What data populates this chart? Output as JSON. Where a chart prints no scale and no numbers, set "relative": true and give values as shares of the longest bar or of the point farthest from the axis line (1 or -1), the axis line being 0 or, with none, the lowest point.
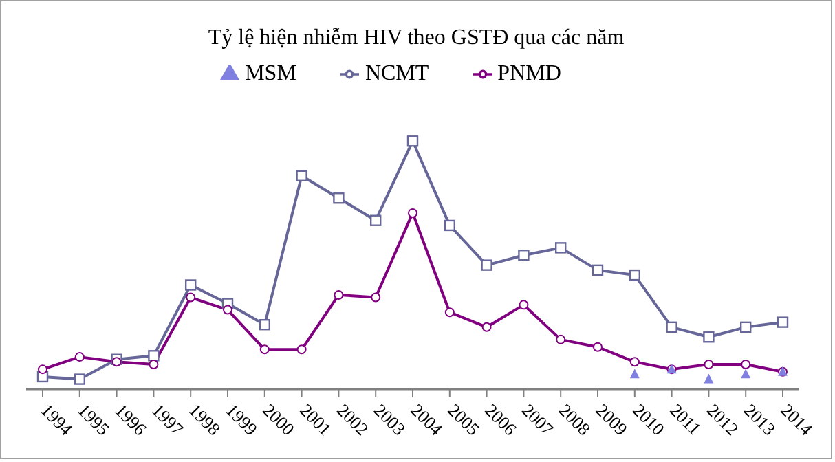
{
  "chart_data": {
    "type": "line",
    "title": "Tỷ lệ hiện nhiễm HIV theo GSTĐ qua các năm",
    "relative": true,
    "legend": "top",
    "grid": false,
    "categories": [
      "1994",
      "1995",
      "1996",
      "1997",
      "1998",
      "1999",
      "2000",
      "2001",
      "2002",
      "2003",
      "2004",
      "2005",
      "2006",
      "2007",
      "2008",
      "2009",
      "2010",
      "2011",
      "2012",
      "2013",
      "2014"
    ],
    "series": [
      {
        "name": "NCMT",
        "color": "#666699",
        "marker": "square",
        "values": [
          0.05,
          0.04,
          0.12,
          0.135,
          0.42,
          0.345,
          0.26,
          0.86,
          0.77,
          0.68,
          1.0,
          0.66,
          0.5,
          0.54,
          0.57,
          0.48,
          0.46,
          0.25,
          0.21,
          0.25,
          0.27
        ]
      },
      {
        "name": "PNMD",
        "color": "#800080",
        "marker": "circle",
        "values": [
          0.08,
          0.13,
          0.11,
          0.1,
          0.37,
          0.32,
          0.16,
          0.16,
          0.38,
          0.37,
          0.71,
          0.31,
          0.25,
          0.34,
          0.2,
          0.17,
          0.11,
          0.08,
          0.1,
          0.1,
          0.07
        ]
      },
      {
        "name": "MSM",
        "type": "scatter",
        "color": "#8080e0",
        "marker": "triangle",
        "values": [
          null,
          null,
          null,
          null,
          null,
          null,
          null,
          null,
          null,
          null,
          null,
          null,
          null,
          null,
          null,
          null,
          0.06,
          0.08,
          0.04,
          0.06,
          0.07
        ]
      }
    ]
  }
}
